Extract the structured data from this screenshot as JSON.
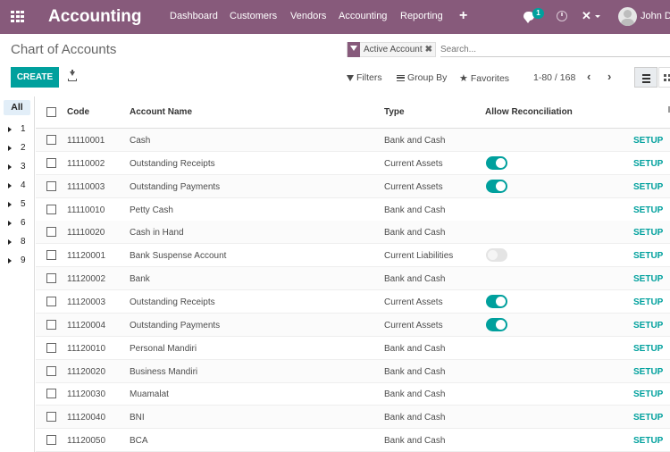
{
  "app": {
    "title": "Accounting"
  },
  "menu": [
    "Dashboard",
    "Customers",
    "Vendors",
    "Accounting",
    "Reporting"
  ],
  "systray": {
    "chat_badge": "1",
    "user_name": "John Doe"
  },
  "breadcrumb": "Chart of Accounts",
  "search": {
    "facet": "Active Account",
    "placeholder": "Search..."
  },
  "toolbar": {
    "create": "CREATE",
    "filters": "Filters",
    "group_by": "Group By",
    "favorites": "Favorites"
  },
  "pager": {
    "range": "1-80 / 168"
  },
  "sidebar": {
    "all": "All",
    "groups": [
      "1",
      "2",
      "3",
      "4",
      "5",
      "6",
      "8",
      "9"
    ]
  },
  "table": {
    "headers": {
      "code": "Code",
      "name": "Account Name",
      "type": "Type",
      "reconcile": "Allow Reconciliation"
    },
    "setup_label": "SETUP",
    "rows": [
      {
        "code": "11110001",
        "name": "Cash",
        "type": "Bank and Cash",
        "reconcile": null
      },
      {
        "code": "11110002",
        "name": "Outstanding Receipts",
        "type": "Current Assets",
        "reconcile": true
      },
      {
        "code": "11110003",
        "name": "Outstanding Payments",
        "type": "Current Assets",
        "reconcile": true
      },
      {
        "code": "11110010",
        "name": "Petty Cash",
        "type": "Bank and Cash",
        "reconcile": null
      },
      {
        "code": "11110020",
        "name": "Cash in Hand",
        "type": "Bank and Cash",
        "reconcile": null
      },
      {
        "code": "11120001",
        "name": "Bank Suspense Account",
        "type": "Current Liabilities",
        "reconcile": false
      },
      {
        "code": "11120002",
        "name": "Bank",
        "type": "Bank and Cash",
        "reconcile": null
      },
      {
        "code": "11120003",
        "name": "Outstanding Receipts",
        "type": "Current Assets",
        "reconcile": true
      },
      {
        "code": "11120004",
        "name": "Outstanding Payments",
        "type": "Current Assets",
        "reconcile": true
      },
      {
        "code": "11120010",
        "name": "Personal Mandiri",
        "type": "Bank and Cash",
        "reconcile": null
      },
      {
        "code": "11120020",
        "name": "Business Mandiri",
        "type": "Bank and Cash",
        "reconcile": null
      },
      {
        "code": "11120030",
        "name": "Muamalat",
        "type": "Bank and Cash",
        "reconcile": null
      },
      {
        "code": "11120040",
        "name": "BNI",
        "type": "Bank and Cash",
        "reconcile": null
      },
      {
        "code": "11120050",
        "name": "BCA",
        "type": "Bank and Cash",
        "reconcile": null
      }
    ]
  },
  "colors": {
    "brand": "#875a7b",
    "accent": "#00a09d"
  }
}
